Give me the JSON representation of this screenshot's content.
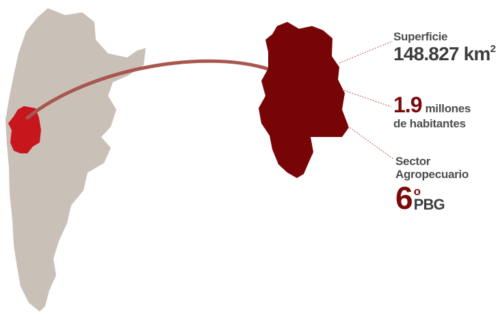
{
  "colors": {
    "country_fill": "#c9c0b7",
    "province_fill_small": "#c8161d",
    "province_fill_large": "#770507",
    "arc": "#a8564e",
    "connector": "#c26a6a",
    "dark_text": "#3d3d3d",
    "red_text": "#7a0a0a"
  },
  "map": {
    "country": "Argentina",
    "highlighted_region": "Mendoza"
  },
  "stats": {
    "area": {
      "label": "Superficie",
      "value": "148.827 km",
      "value_sup": "2"
    },
    "population": {
      "value": "1.9",
      "line1": "millones",
      "line2": "de habitantes"
    },
    "agro": {
      "label_line1": "Sector",
      "label_line2": "Agropecuario",
      "rank": "6",
      "rank_sup": "o",
      "rank_unit": "PBG"
    }
  }
}
